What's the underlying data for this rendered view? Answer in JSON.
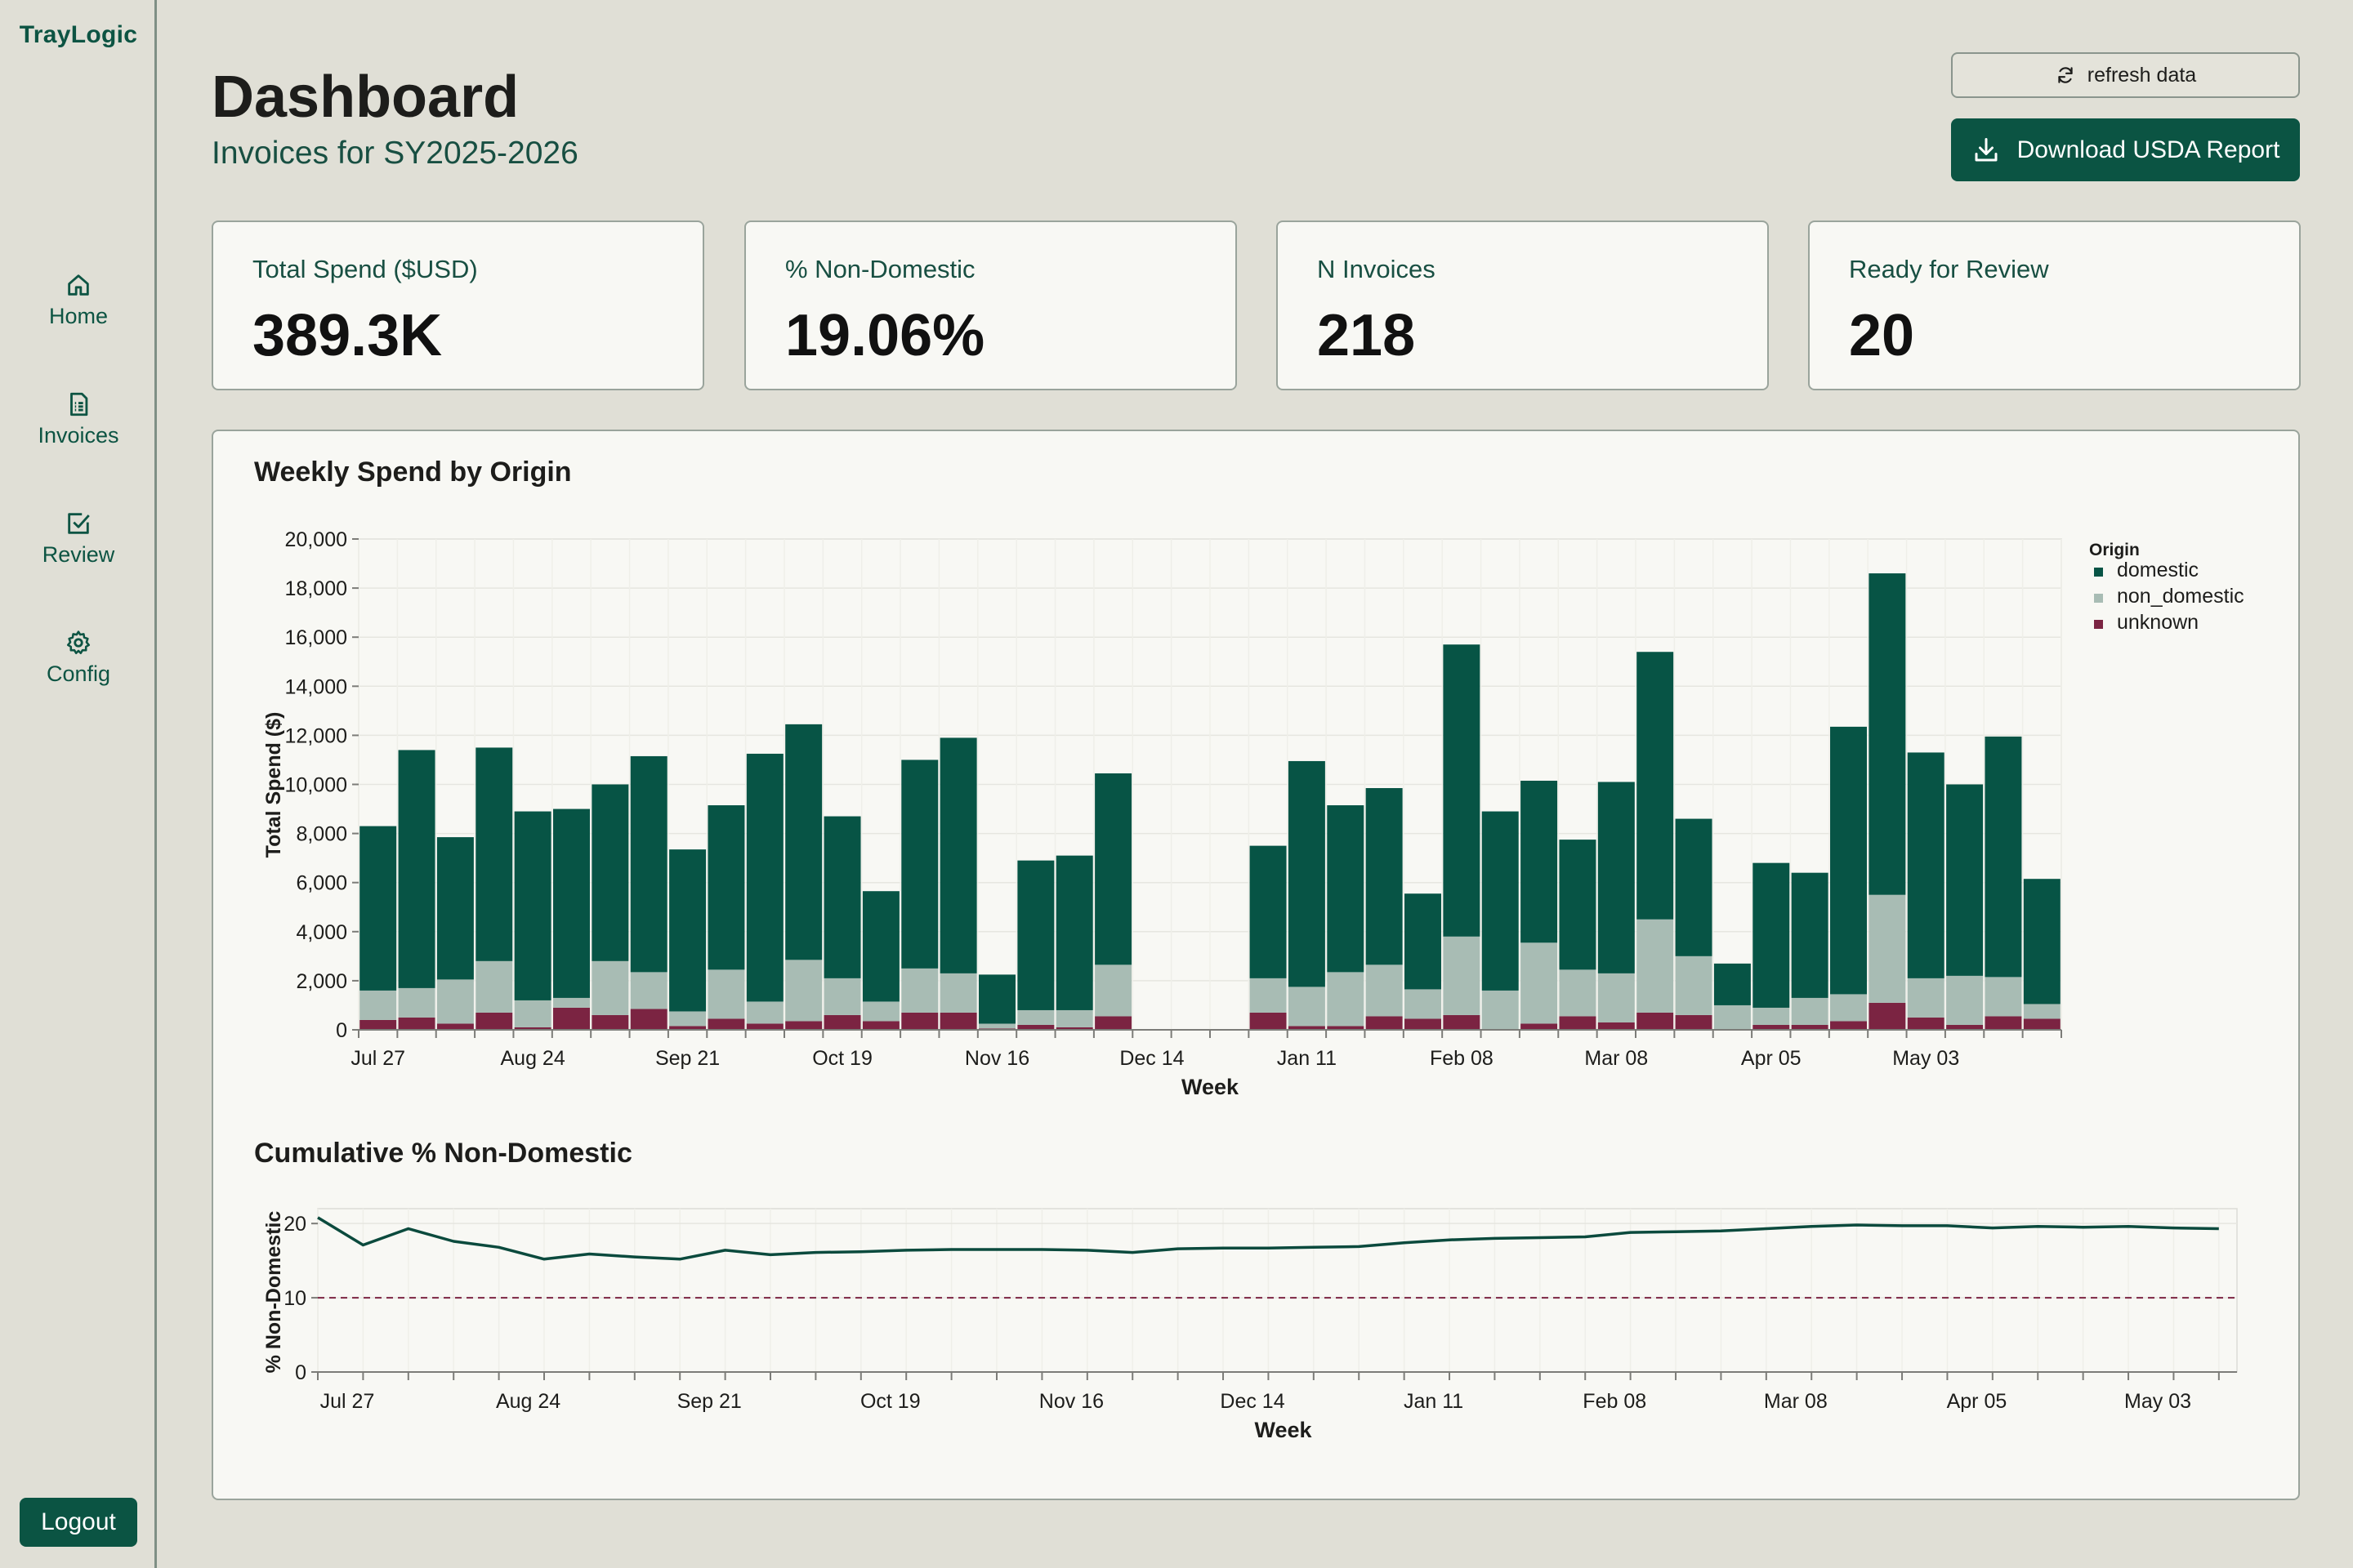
{
  "brand": "TrayLogic",
  "sidebar": {
    "items": [
      {
        "label": "Home",
        "icon": "home-icon"
      },
      {
        "label": "Invoices",
        "icon": "invoice-icon"
      },
      {
        "label": "Review",
        "icon": "checkbox-icon"
      },
      {
        "label": "Config",
        "icon": "gear-icon"
      }
    ],
    "logout_label": "Logout"
  },
  "header": {
    "title": "Dashboard",
    "subtitle": "Invoices for SY2025-2026",
    "refresh_label": "refresh data",
    "download_label": "Download USDA Report"
  },
  "kpis": [
    {
      "label": "Total Spend ($USD)",
      "value": "389.3K"
    },
    {
      "label": "% Non-Domestic",
      "value": "19.06%"
    },
    {
      "label": "N Invoices",
      "value": "218"
    },
    {
      "label": "Ready for Review",
      "value": "20"
    }
  ],
  "colors": {
    "domestic": "#075445",
    "non_domestic": "#a8bcb4",
    "unknown": "#7b2442",
    "accent": "#0b5443"
  },
  "chart_data": [
    {
      "type": "bar",
      "stacked": true,
      "title": "Weekly Spend by Origin",
      "xlabel": "Week",
      "ylabel": "Total Spend ($)",
      "ylim": [
        0,
        20000
      ],
      "yticks": [
        0,
        2000,
        4000,
        6000,
        8000,
        10000,
        12000,
        14000,
        16000,
        18000,
        20000
      ],
      "ytick_labels": [
        "0",
        "2,000",
        "4,000",
        "6,000",
        "8,000",
        "10,000",
        "12,000",
        "14,000",
        "16,000",
        "18,000",
        "20,000"
      ],
      "x_tick_labels": [
        "Jul 27",
        "Aug 24",
        "Sep 21",
        "Oct 19",
        "Nov 16",
        "Dec 14",
        "Jan 11",
        "Feb 08",
        "Mar 08",
        "Apr 05",
        "May 03"
      ],
      "x_tick_every": 4,
      "legend_title": "Origin",
      "legend_position": "right",
      "grid": true,
      "series": [
        {
          "name": "domestic",
          "values": [
            6700,
            9700,
            5800,
            8700,
            7700,
            7700,
            7200,
            8800,
            6600,
            6700,
            10100,
            9600,
            6600,
            4500,
            8500,
            9600,
            2000,
            6100,
            6300,
            7800,
            0,
            0,
            0,
            5400,
            9200,
            6800,
            7200,
            3900,
            11900,
            7300,
            6600,
            5300,
            7800,
            10900,
            5600,
            1700,
            5900,
            5100,
            10900,
            13100,
            9200,
            7800,
            9800,
            5100
          ]
        },
        {
          "name": "non_domestic",
          "values": [
            1200,
            1200,
            1800,
            2100,
            1100,
            400,
            2200,
            1500,
            600,
            2000,
            900,
            2500,
            1500,
            800,
            1800,
            1600,
            200,
            600,
            700,
            2100,
            0,
            0,
            0,
            1400,
            1600,
            2200,
            2100,
            1200,
            3200,
            1600,
            3300,
            1900,
            2000,
            3800,
            2400,
            1000,
            700,
            1100,
            1100,
            4400,
            1600,
            2000,
            1600,
            600
          ]
        },
        {
          "name": "unknown",
          "values": [
            400,
            500,
            250,
            700,
            100,
            900,
            600,
            850,
            150,
            450,
            250,
            350,
            600,
            350,
            700,
            700,
            50,
            200,
            100,
            550,
            0,
            0,
            0,
            700,
            150,
            150,
            550,
            450,
            600,
            0,
            250,
            550,
            300,
            700,
            600,
            0,
            200,
            200,
            350,
            1100,
            500,
            200,
            550,
            450
          ]
        }
      ]
    },
    {
      "type": "line",
      "title": "Cumulative % Non-Domestic",
      "xlabel": "Week",
      "ylabel": "% Non-Domestic",
      "ylim": [
        0,
        22
      ],
      "yticks": [
        0,
        10,
        20
      ],
      "x_tick_labels": [
        "Jul 27",
        "Aug 24",
        "Sep 21",
        "Oct 19",
        "Nov 16",
        "Dec 14",
        "Jan 11",
        "Feb 08",
        "Mar 08",
        "Apr 05",
        "May 03"
      ],
      "x_tick_every": 4,
      "reference_line": 10,
      "grid": true,
      "series": [
        {
          "name": "cumulative_pct",
          "values": [
            20.8,
            17.1,
            19.3,
            17.6,
            16.8,
            15.2,
            15.9,
            15.5,
            15.2,
            16.4,
            15.8,
            16.1,
            16.2,
            16.4,
            16.5,
            16.5,
            16.5,
            16.4,
            16.1,
            16.6,
            16.7,
            16.7,
            16.8,
            16.9,
            17.4,
            17.8,
            18.0,
            18.1,
            18.2,
            18.8,
            18.9,
            19.0,
            19.3,
            19.6,
            19.8,
            19.7,
            19.7,
            19.4,
            19.6,
            19.5,
            19.6,
            19.4,
            19.3
          ]
        }
      ]
    }
  ]
}
